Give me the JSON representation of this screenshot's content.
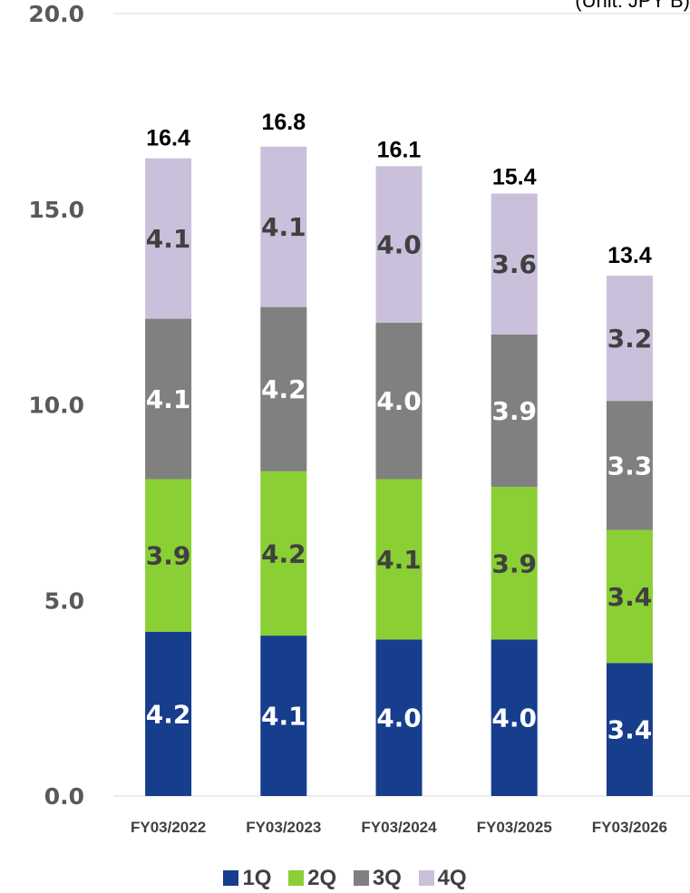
{
  "unit_label": "(Unit: JPY B)",
  "colors": {
    "q1": "#173d8d",
    "q2": "#8acf34",
    "q3": "#808080",
    "q4": "#cac0db"
  },
  "chart_data": {
    "type": "bar",
    "stacked": true,
    "categories": [
      "FY03/2022",
      "FY03/2023",
      "FY03/2024",
      "FY03/2025",
      "FY03/2026"
    ],
    "series": [
      {
        "name": "1Q",
        "values": [
          4.2,
          4.1,
          4.0,
          4.0,
          3.4
        ],
        "value_labels": [
          "4.2",
          "4.1",
          "4.0",
          "4.0",
          "3.4"
        ]
      },
      {
        "name": "2Q",
        "values": [
          3.9,
          4.2,
          4.1,
          3.9,
          3.4
        ],
        "value_labels": [
          "3.9",
          "4.2",
          "4.1",
          "3.9",
          "3.4"
        ]
      },
      {
        "name": "3Q",
        "values": [
          4.1,
          4.2,
          4.0,
          3.9,
          3.3
        ],
        "value_labels": [
          "4.1",
          "4.2",
          "4.0",
          "3.9",
          "3.3"
        ]
      },
      {
        "name": "4Q",
        "values": [
          4.1,
          4.1,
          4.0,
          3.6,
          3.2
        ],
        "value_labels": [
          "4.1",
          "4.1",
          "4.0",
          "3.6",
          "3.2"
        ]
      }
    ],
    "totals": [
      16.4,
      16.8,
      16.1,
      15.4,
      13.4
    ],
    "total_labels": [
      "16.4",
      "16.8",
      "16.1",
      "15.4",
      "13.4"
    ],
    "yticks": [
      "0.0",
      "5.0",
      "10.0",
      "15.0",
      "20.0"
    ],
    "ylim": [
      0,
      20
    ],
    "grid": false,
    "legend_position": "bottom"
  }
}
